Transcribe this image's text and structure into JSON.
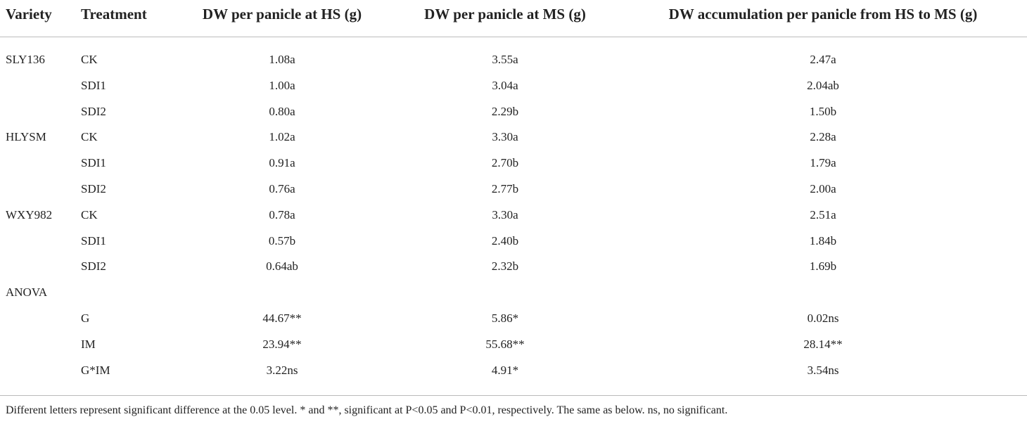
{
  "table": {
    "columns": [
      "Variety",
      "Treatment",
      "DW per panicle at HS (g)",
      "DW per panicle at MS (g)",
      "DW accumulation per panicle from HS to MS (g)"
    ],
    "rows": [
      {
        "variety": "SLY136",
        "treatment": "CK",
        "hs": "1.08a",
        "ms": "3.55a",
        "acc": "2.47a"
      },
      {
        "treatment": "SDI1",
        "hs": "1.00a",
        "ms": "3.04a",
        "acc": "2.04ab"
      },
      {
        "treatment": "SDI2",
        "hs": "0.80a",
        "ms": "2.29b",
        "acc": "1.50b"
      },
      {
        "variety": "HLYSM",
        "treatment": "CK",
        "hs": "1.02a",
        "ms": "3.30a",
        "acc": "2.28a"
      },
      {
        "treatment": "SDI1",
        "hs": "0.91a",
        "ms": "2.70b",
        "acc": "1.79a"
      },
      {
        "treatment": "SDI2",
        "hs": "0.76a",
        "ms": "2.77b",
        "acc": "2.00a"
      },
      {
        "variety": "WXY982",
        "treatment": "CK",
        "hs": "0.78a",
        "ms": "3.30a",
        "acc": "2.51a"
      },
      {
        "treatment": "SDI1",
        "hs": "0.57b",
        "ms": "2.40b",
        "acc": "1.84b"
      },
      {
        "treatment": "SDI2",
        "hs": "0.64ab",
        "ms": "2.32b",
        "acc": "1.69b"
      },
      {
        "variety": "ANOVA"
      },
      {
        "treatment": "G",
        "hs": "44.67**",
        "ms": "5.86*",
        "acc": "0.02ns"
      },
      {
        "treatment": "IM",
        "hs": "23.94**",
        "ms": "55.68**",
        "acc": "28.14**"
      },
      {
        "treatment": "G*IM",
        "hs": "3.22ns",
        "ms": "4.91*",
        "acc": "3.54ns"
      }
    ],
    "footnote": "Different letters represent significant difference at the 0.05 level. * and **, significant at P<0.05 and P<0.01, respectively. The same as below. ns, no significant."
  }
}
